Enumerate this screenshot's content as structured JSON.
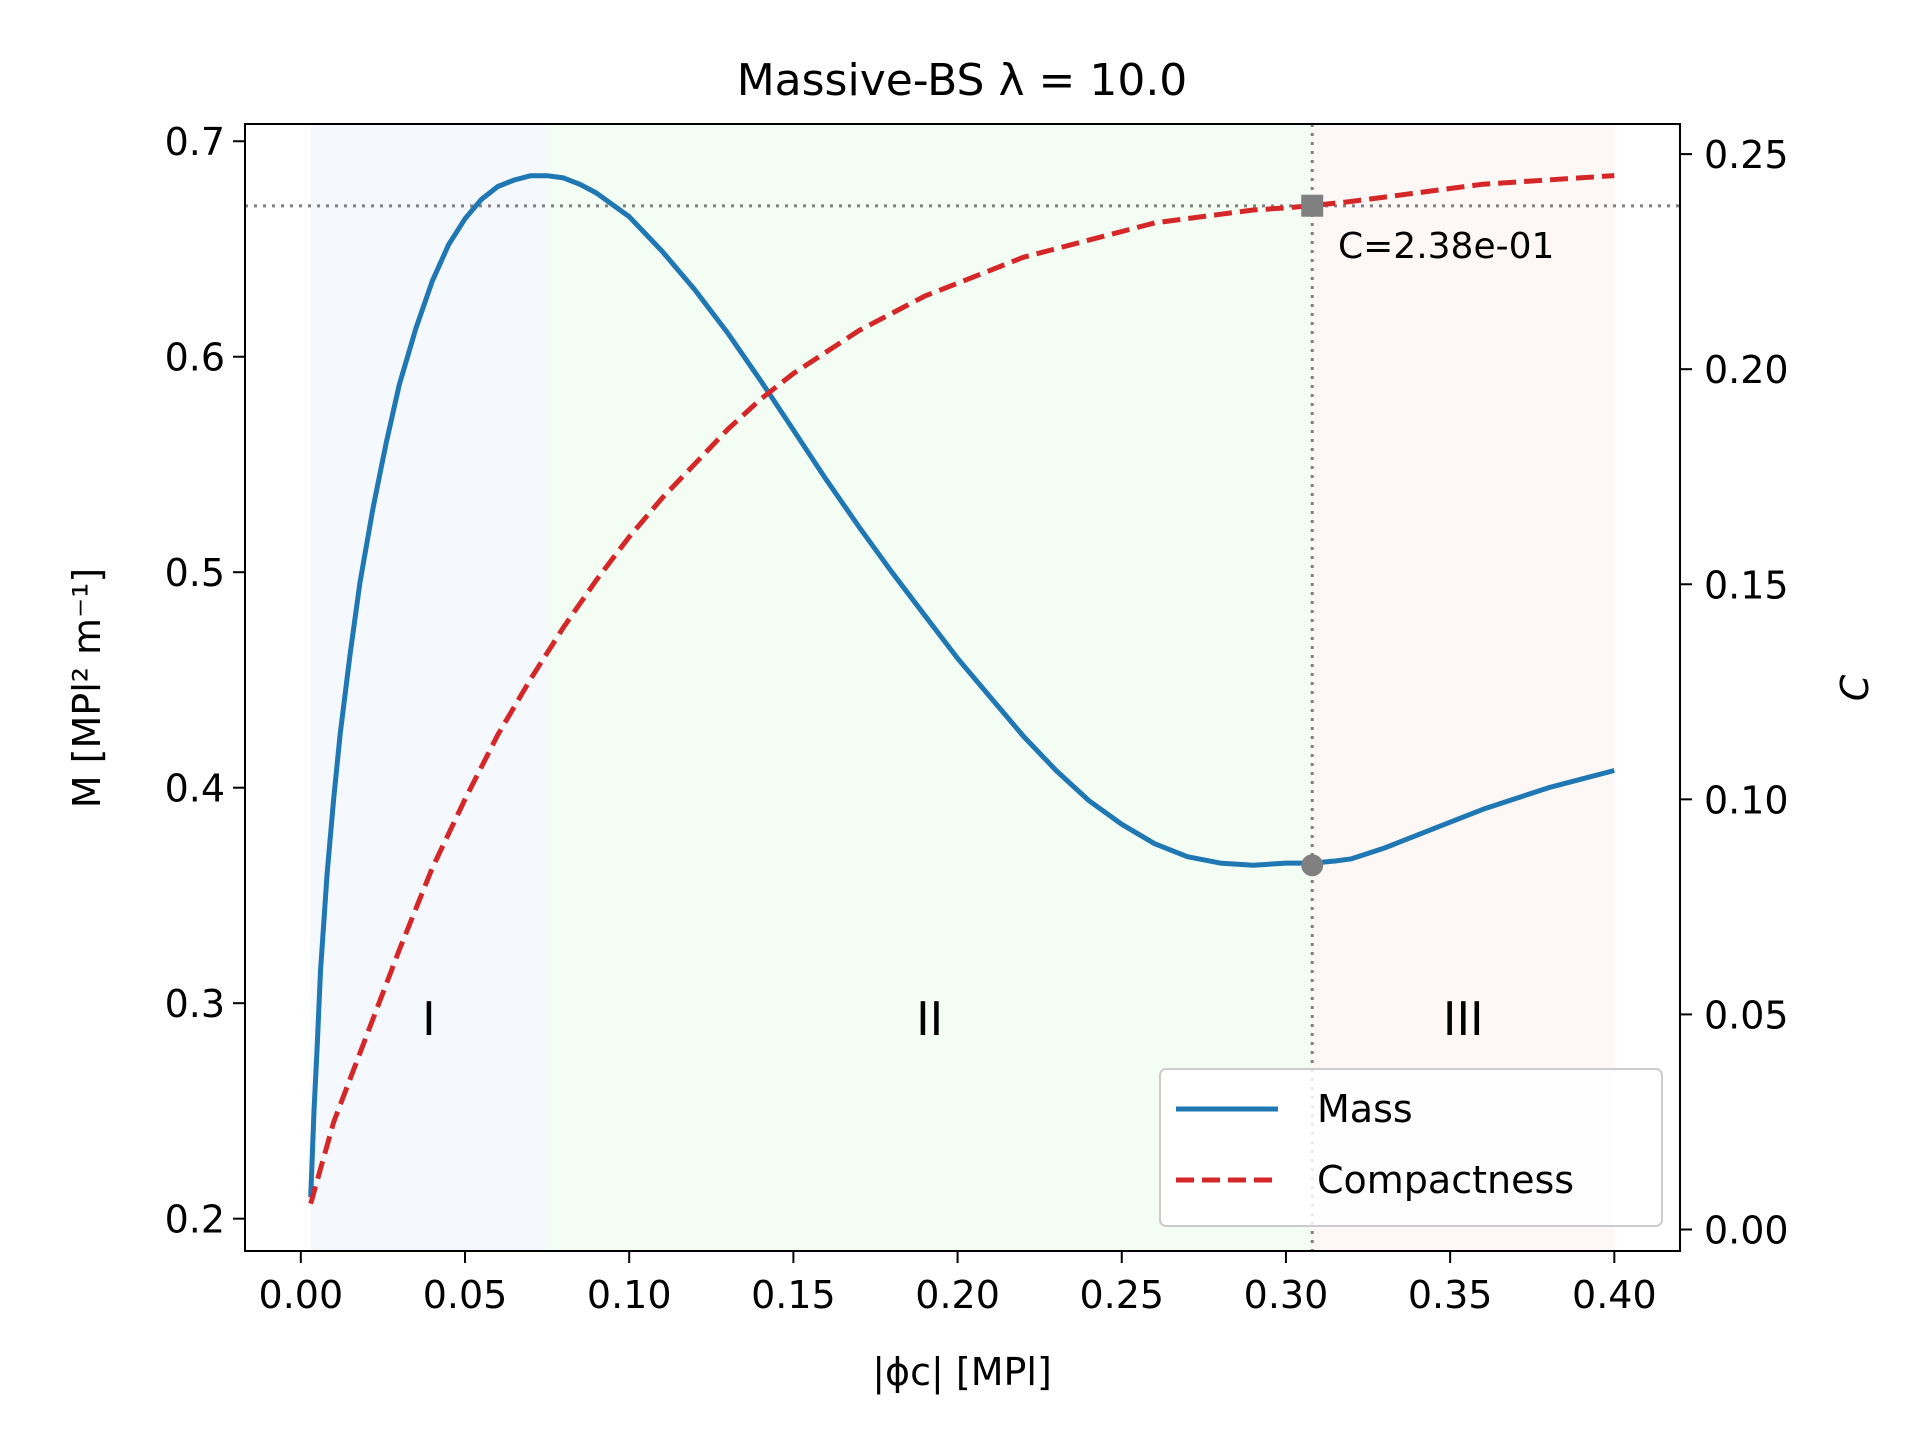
{
  "chart_data": {
    "type": "line",
    "title": "Massive-BS   λ = 10.0",
    "xlabel": "|ϕc| [MPl]",
    "ylabel": "M [MPl² m⁻¹]",
    "y2label": "C",
    "xlim": [
      -0.017,
      0.42
    ],
    "ylim": [
      0.185,
      0.708
    ],
    "y2lim": [
      -0.005,
      0.257
    ],
    "x_ticks": [
      0.0,
      0.05,
      0.1,
      0.15,
      0.2,
      0.25,
      0.3,
      0.35,
      0.4
    ],
    "x_tick_labels": [
      "0.00",
      "0.05",
      "0.10",
      "0.15",
      "0.20",
      "0.25",
      "0.30",
      "0.35",
      "0.40"
    ],
    "y_ticks": [
      0.2,
      0.3,
      0.4,
      0.5,
      0.6,
      0.7
    ],
    "y_tick_labels": [
      "0.2",
      "0.3",
      "0.4",
      "0.5",
      "0.6",
      "0.7"
    ],
    "y2_ticks": [
      0.0,
      0.05,
      0.1,
      0.15,
      0.2,
      0.25
    ],
    "y2_tick_labels": [
      "0.00",
      "0.05",
      "0.10",
      "0.15",
      "0.20",
      "0.25"
    ],
    "regions": [
      {
        "label": "I",
        "x0": 0.003,
        "x1": 0.075,
        "color": "#f5f8fd"
      },
      {
        "label": "II",
        "x0": 0.075,
        "x1": 0.308,
        "color": "#f3fdf3"
      },
      {
        "label": "III",
        "x0": 0.308,
        "x1": 0.4,
        "color": "#fdf8f5"
      }
    ],
    "series": [
      {
        "name": "Mass",
        "axis": "left",
        "color": "#1f77b4",
        "style": "solid",
        "x": [
          0.003,
          0.004,
          0.005,
          0.006,
          0.008,
          0.01,
          0.012,
          0.015,
          0.018,
          0.022,
          0.026,
          0.03,
          0.035,
          0.04,
          0.045,
          0.05,
          0.055,
          0.06,
          0.065,
          0.07,
          0.075,
          0.08,
          0.085,
          0.09,
          0.1,
          0.11,
          0.12,
          0.13,
          0.14,
          0.15,
          0.16,
          0.17,
          0.18,
          0.19,
          0.2,
          0.21,
          0.22,
          0.23,
          0.24,
          0.25,
          0.26,
          0.27,
          0.28,
          0.29,
          0.3,
          0.308,
          0.315,
          0.32,
          0.33,
          0.34,
          0.35,
          0.36,
          0.37,
          0.38,
          0.39,
          0.4
        ],
        "values": [
          0.21,
          0.25,
          0.28,
          0.315,
          0.36,
          0.395,
          0.425,
          0.462,
          0.495,
          0.53,
          0.56,
          0.587,
          0.613,
          0.635,
          0.652,
          0.664,
          0.673,
          0.679,
          0.682,
          0.684,
          0.684,
          0.683,
          0.68,
          0.676,
          0.665,
          0.649,
          0.631,
          0.611,
          0.589,
          0.566,
          0.543,
          0.521,
          0.5,
          0.48,
          0.46,
          0.442,
          0.424,
          0.408,
          0.394,
          0.383,
          0.374,
          0.368,
          0.365,
          0.364,
          0.365,
          0.365,
          0.366,
          0.367,
          0.372,
          0.378,
          0.384,
          0.39,
          0.395,
          0.4,
          0.404,
          0.408
        ]
      },
      {
        "name": "Compactness",
        "axis": "right",
        "color": "#d62728",
        "style": "dashed",
        "x": [
          0.003,
          0.01,
          0.02,
          0.03,
          0.04,
          0.05,
          0.06,
          0.07,
          0.08,
          0.09,
          0.1,
          0.11,
          0.12,
          0.13,
          0.14,
          0.15,
          0.16,
          0.17,
          0.18,
          0.19,
          0.2,
          0.21,
          0.22,
          0.23,
          0.24,
          0.25,
          0.26,
          0.27,
          0.28,
          0.29,
          0.3,
          0.308,
          0.32,
          0.33,
          0.34,
          0.35,
          0.36,
          0.37,
          0.38,
          0.39,
          0.4
        ],
        "values": [
          0.006,
          0.025,
          0.045,
          0.065,
          0.084,
          0.1,
          0.115,
          0.128,
          0.14,
          0.151,
          0.161,
          0.17,
          0.178,
          0.186,
          0.193,
          0.199,
          0.204,
          0.209,
          0.213,
          0.217,
          0.22,
          0.223,
          0.226,
          0.228,
          0.23,
          0.232,
          0.234,
          0.235,
          0.236,
          0.237,
          0.2375,
          0.238,
          0.239,
          0.24,
          0.241,
          0.242,
          0.243,
          0.2435,
          0.244,
          0.2445,
          0.245
        ]
      }
    ],
    "markers": {
      "vline_x": 0.308,
      "hline_y": 0.67,
      "mass_min": {
        "x": 0.308,
        "y": 0.364
      },
      "compactness_point": {
        "x": 0.308,
        "y": 0.238
      }
    },
    "annotation": "C=2.38e-01",
    "legend": {
      "position": "lower-right",
      "entries": [
        "Mass",
        "Compactness"
      ]
    }
  }
}
